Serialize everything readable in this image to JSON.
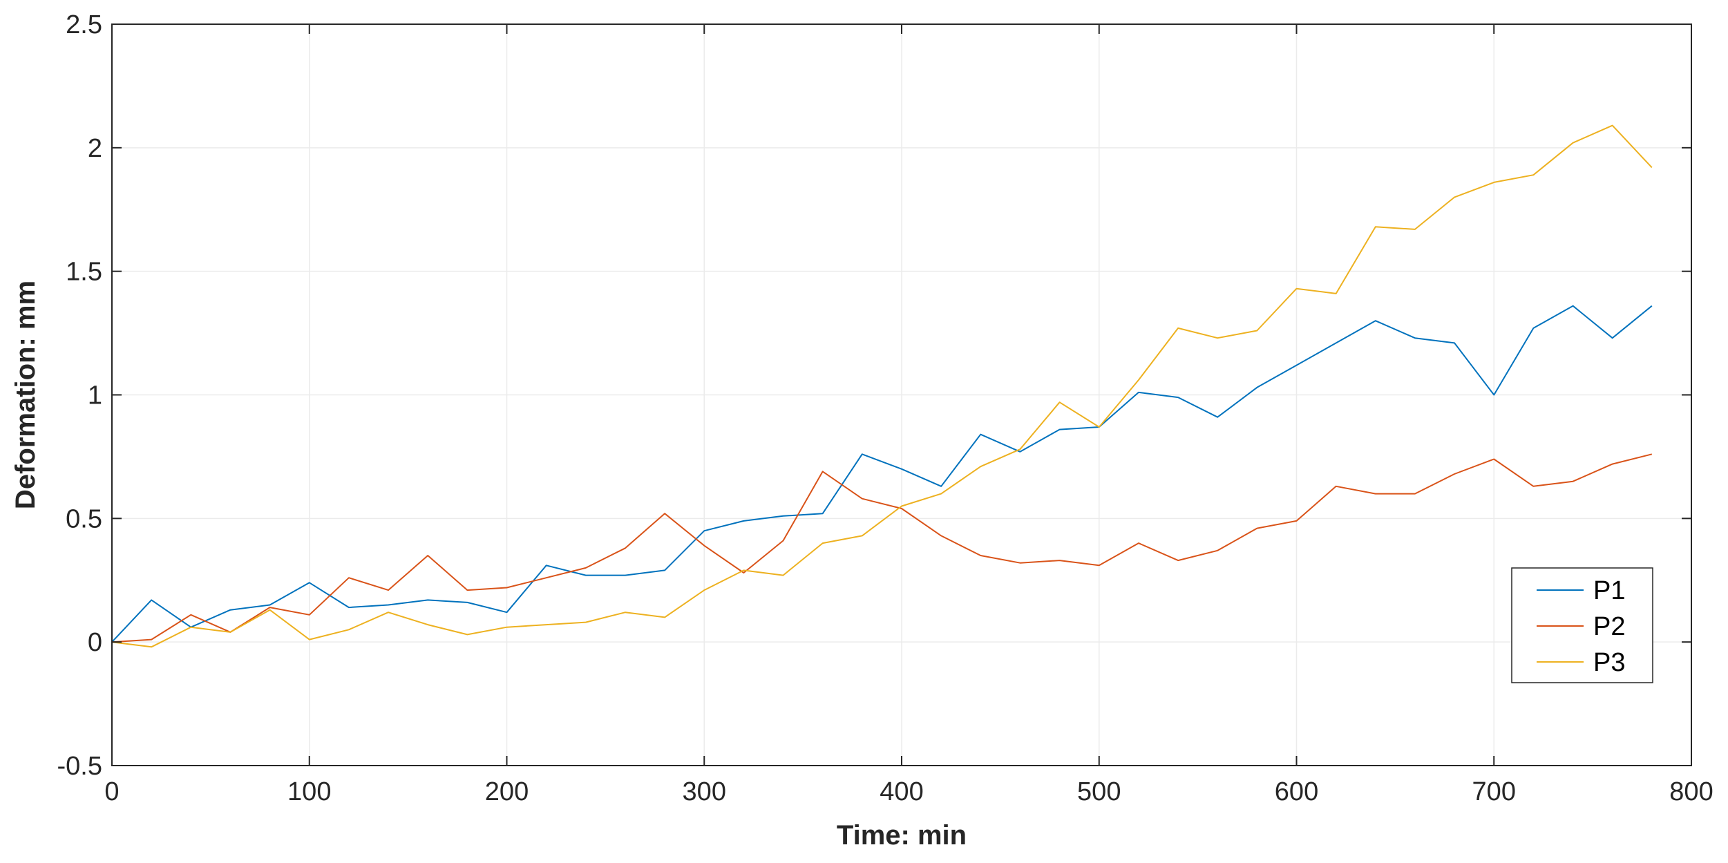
{
  "chart_data": {
    "type": "line",
    "xlabel": "Time: min",
    "ylabel": "Deformation: mm",
    "xlim": [
      0,
      800
    ],
    "ylim": [
      -0.5,
      2.5
    ],
    "xticks": [
      0,
      100,
      200,
      300,
      400,
      500,
      600,
      700,
      800
    ],
    "xtick_labels": [
      "0",
      "100",
      "200",
      "300",
      "400",
      "500",
      "600",
      "700",
      "800"
    ],
    "yticks": [
      -0.5,
      0,
      0.5,
      1,
      1.5,
      2,
      2.5
    ],
    "ytick_labels": [
      "-0.5",
      "0",
      "0.5",
      "1",
      "1.5",
      "2",
      "2.5"
    ],
    "grid": true,
    "legend_position": "bottom-right",
    "x": [
      0,
      20,
      40,
      60,
      80,
      100,
      120,
      140,
      160,
      180,
      200,
      220,
      240,
      260,
      280,
      300,
      320,
      340,
      360,
      380,
      400,
      420,
      440,
      460,
      480,
      500,
      520,
      540,
      560,
      580,
      600,
      620,
      640,
      660,
      680,
      700,
      720,
      740,
      760,
      780
    ],
    "series": [
      {
        "name": "P1",
        "color": "#0072BD",
        "values": [
          0,
          0.17,
          0.06,
          0.13,
          0.15,
          0.24,
          0.14,
          0.15,
          0.17,
          0.16,
          0.12,
          0.31,
          0.27,
          0.27,
          0.29,
          0.45,
          0.49,
          0.51,
          0.52,
          0.76,
          0.7,
          0.63,
          0.84,
          0.77,
          0.86,
          0.87,
          1.01,
          0.99,
          0.91,
          1.03,
          1.12,
          1.21,
          1.3,
          1.23,
          1.21,
          1.0,
          1.27,
          1.36,
          1.23,
          1.36
        ]
      },
      {
        "name": "P2",
        "color": "#D95319",
        "values": [
          0,
          0.01,
          0.11,
          0.04,
          0.14,
          0.11,
          0.26,
          0.21,
          0.35,
          0.21,
          0.22,
          0.26,
          0.3,
          0.38,
          0.52,
          0.39,
          0.28,
          0.41,
          0.69,
          0.58,
          0.54,
          0.43,
          0.35,
          0.32,
          0.33,
          0.31,
          0.4,
          0.33,
          0.37,
          0.46,
          0.49,
          0.63,
          0.6,
          0.6,
          0.68,
          0.74,
          0.63,
          0.65,
          0.72,
          0.76
        ]
      },
      {
        "name": "P3",
        "color": "#EDB120",
        "values": [
          0,
          -0.02,
          0.06,
          0.04,
          0.13,
          0.01,
          0.05,
          0.12,
          0.07,
          0.03,
          0.06,
          0.07,
          0.08,
          0.12,
          0.1,
          0.21,
          0.29,
          0.27,
          0.4,
          0.43,
          0.55,
          0.6,
          0.71,
          0.78,
          0.97,
          0.87,
          1.06,
          1.27,
          1.23,
          1.26,
          1.43,
          1.41,
          1.68,
          1.67,
          1.8,
          1.86,
          1.89,
          2.02,
          2.09,
          1.92
        ]
      }
    ]
  }
}
